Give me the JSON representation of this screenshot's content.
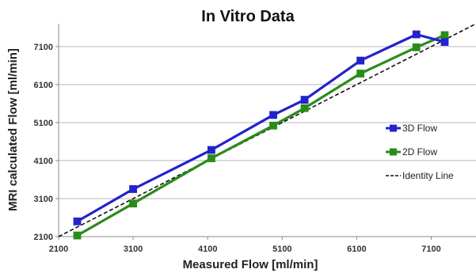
{
  "chart_data": {
    "type": "line",
    "title": "In Vitro Data",
    "xlabel": "Measured Flow [ml/min]",
    "ylabel": "MRI calculated Flow [ml/min]",
    "xlim": [
      2100,
      7700
    ],
    "ylim": [
      2100,
      7700
    ],
    "x_ticks": [
      2100,
      3100,
      4100,
      5100,
      6100,
      7100
    ],
    "y_ticks": [
      2100,
      3100,
      4100,
      5100,
      6100,
      7100
    ],
    "x_tick_labels": [
      "2100",
      "3100",
      "4100",
      "5100",
      "6100",
      "7100"
    ],
    "y_tick_labels": [
      "2100",
      "3100",
      "4100",
      "5100",
      "6100",
      "7100"
    ],
    "grid": "horizontal",
    "legend_position": "right",
    "series": [
      {
        "name": "3D Flow",
        "color": "#2323cc",
        "marker": "square",
        "line_style": "solid",
        "points": [
          {
            "x": 2350,
            "y": 2500
          },
          {
            "x": 3100,
            "y": 3350
          },
          {
            "x": 4150,
            "y": 4380
          },
          {
            "x": 4980,
            "y": 5300
          },
          {
            "x": 5400,
            "y": 5700
          },
          {
            "x": 6150,
            "y": 6730
          },
          {
            "x": 6900,
            "y": 7420
          },
          {
            "x": 7280,
            "y": 7220
          }
        ]
      },
      {
        "name": "2D Flow",
        "color": "#2a8c1a",
        "marker": "square",
        "line_style": "solid",
        "points": [
          {
            "x": 2350,
            "y": 2130
          },
          {
            "x": 3100,
            "y": 2970
          },
          {
            "x": 4150,
            "y": 4160
          },
          {
            "x": 4980,
            "y": 5020
          },
          {
            "x": 5400,
            "y": 5480
          },
          {
            "x": 6150,
            "y": 6390
          },
          {
            "x": 6900,
            "y": 7080
          },
          {
            "x": 7280,
            "y": 7400
          }
        ]
      },
      {
        "name": "Identity Line",
        "color": "#111111",
        "marker": "none",
        "line_style": "dashed",
        "points": [
          {
            "x": 2100,
            "y": 2100
          },
          {
            "x": 7700,
            "y": 7700
          }
        ]
      }
    ]
  }
}
